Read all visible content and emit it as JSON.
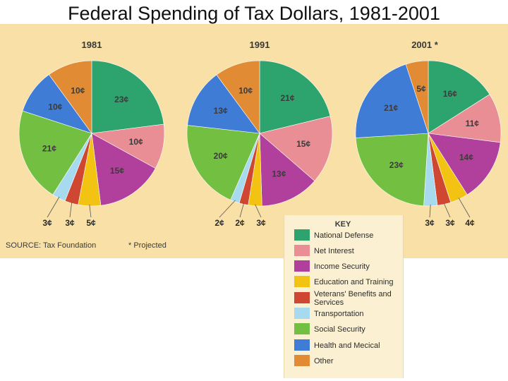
{
  "title": "Federal Spending of Tax Dollars, 1981-2001",
  "source": "SOURCE: Tax Foundation",
  "projected_note": "* Projected",
  "colors": {
    "panel_bg": "#f8e0a6",
    "key_bg": "#fbf1d2",
    "National Defense": "#2da36e",
    "Net Interest": "#ea8e96",
    "Income Security": "#b0409b",
    "Education and Training": "#f2c313",
    "Veterans' Benefits and Services": "#cf4730",
    "Transportation": "#a7d9ef",
    "Social Security": "#72bf41",
    "Health and Mecical": "#3e7cd6",
    "Other": "#e18c34"
  },
  "key": {
    "title": "KEY",
    "items": [
      {
        "name": "National Defense",
        "lines": [
          "National Defense"
        ]
      },
      {
        "name": "Net Interest",
        "lines": [
          "Net Interest"
        ]
      },
      {
        "name": "Income Security",
        "lines": [
          "Income Security"
        ]
      },
      {
        "name": "Education and Training",
        "lines": [
          "Education and Training"
        ]
      },
      {
        "name": "Veterans' Benefits and Services",
        "lines": [
          "Veterans' Benefits and",
          "Services"
        ]
      },
      {
        "name": "Transportation",
        "lines": [
          "Transportation"
        ]
      },
      {
        "name": "Social Security",
        "lines": [
          "Social Security"
        ]
      },
      {
        "name": "Health and Mecical",
        "lines": [
          "Health and Mecical"
        ]
      },
      {
        "name": "Other",
        "lines": [
          "Other"
        ]
      }
    ]
  },
  "chart_data": [
    {
      "type": "pie",
      "title": "1981",
      "unit": "¢",
      "slices": [
        {
          "category": "National Defense",
          "value": 23,
          "label": "23¢",
          "outside": false
        },
        {
          "category": "Net Interest",
          "value": 10,
          "label": "10¢",
          "outside": false
        },
        {
          "category": "Income Security",
          "value": 15,
          "label": "15¢",
          "outside": false
        },
        {
          "category": "Education and Training",
          "value": 5,
          "label": "5¢",
          "outside": true
        },
        {
          "category": "Veterans' Benefits and Services",
          "value": 3,
          "label": "3¢",
          "outside": true
        },
        {
          "category": "Transportation",
          "value": 3,
          "label": "3¢",
          "outside": true
        },
        {
          "category": "Social Security",
          "value": 21,
          "label": "21¢",
          "outside": false
        },
        {
          "category": "Health and Mecical",
          "value": 10,
          "label": "10¢",
          "outside": false
        },
        {
          "category": "Other",
          "value": 10,
          "label": "10¢",
          "outside": false
        }
      ]
    },
    {
      "type": "pie",
      "title": "1991",
      "unit": "¢",
      "slices": [
        {
          "category": "National Defense",
          "value": 21,
          "label": "21¢",
          "outside": false
        },
        {
          "category": "Net Interest",
          "value": 15,
          "label": "15¢",
          "outside": false
        },
        {
          "category": "Income Security",
          "value": 13,
          "label": "13¢",
          "outside": false
        },
        {
          "category": "Education and Training",
          "value": 3,
          "label": "3¢",
          "outside": true
        },
        {
          "category": "Veterans' Benefits and Services",
          "value": 2,
          "label": "2¢",
          "outside": true
        },
        {
          "category": "Transportation",
          "value": 2,
          "label": "2¢",
          "outside": true
        },
        {
          "category": "Social Security",
          "value": 20,
          "label": "20¢",
          "outside": false
        },
        {
          "category": "Health and Mecical",
          "value": 13,
          "label": "13¢",
          "outside": false
        },
        {
          "category": "Other",
          "value": 10,
          "label": "10¢",
          "outside": false
        }
      ]
    },
    {
      "type": "pie",
      "title": "2001 *",
      "unit": "¢",
      "slices": [
        {
          "category": "National Defense",
          "value": 16,
          "label": "16¢",
          "outside": false
        },
        {
          "category": "Net Interest",
          "value": 11,
          "label": "11¢",
          "outside": false
        },
        {
          "category": "Income Security",
          "value": 14,
          "label": "14¢",
          "outside": false
        },
        {
          "category": "Education and Training",
          "value": 4,
          "label": "4¢",
          "outside": true
        },
        {
          "category": "Veterans' Benefits and Services",
          "value": 3,
          "label": "3¢",
          "outside": true
        },
        {
          "category": "Transportation",
          "value": 3,
          "label": "3¢",
          "outside": true
        },
        {
          "category": "Social Security",
          "value": 23,
          "label": "23¢",
          "outside": false
        },
        {
          "category": "Health and Mecical",
          "value": 21,
          "label": "21¢",
          "outside": false
        },
        {
          "category": "Other",
          "value": 5,
          "label": "5¢",
          "outside": false
        }
      ]
    }
  ]
}
